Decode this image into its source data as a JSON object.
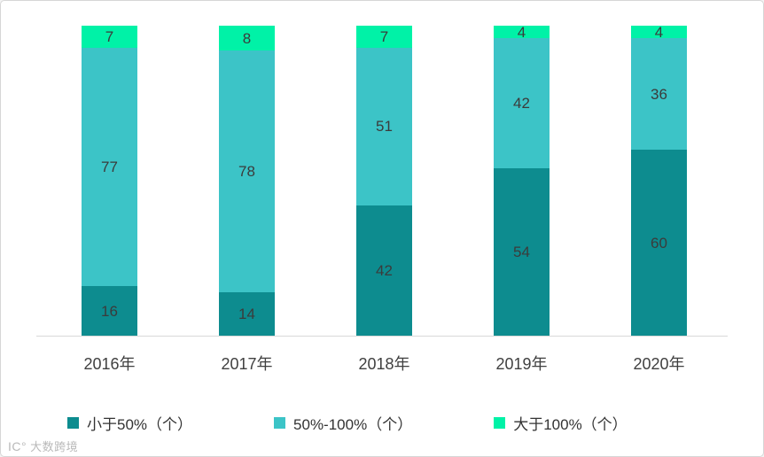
{
  "chart_data": {
    "type": "bar",
    "stacked": true,
    "title": "",
    "xlabel": "",
    "ylabel": "",
    "ylim": [
      0,
      100
    ],
    "grid": false,
    "legend_position": "bottom",
    "categories": [
      "2016年",
      "2017年",
      "2018年",
      "2019年",
      "2020年"
    ],
    "series": [
      {
        "name": "小于50%（个）",
        "color": "#0d8c8f",
        "values": [
          16,
          14,
          42,
          54,
          60
        ]
      },
      {
        "name": "50%-100%（个）",
        "color": "#3cc4c7",
        "values": [
          77,
          78,
          51,
          42,
          36
        ]
      },
      {
        "name": "大于100%（个）",
        "color": "#00f2a7",
        "values": [
          7,
          8,
          7,
          4,
          4
        ]
      }
    ]
  },
  "axis": {
    "baseline_color": "#d9d9d9"
  },
  "watermark": {
    "logo": "IC°",
    "text": "大数跨境"
  }
}
